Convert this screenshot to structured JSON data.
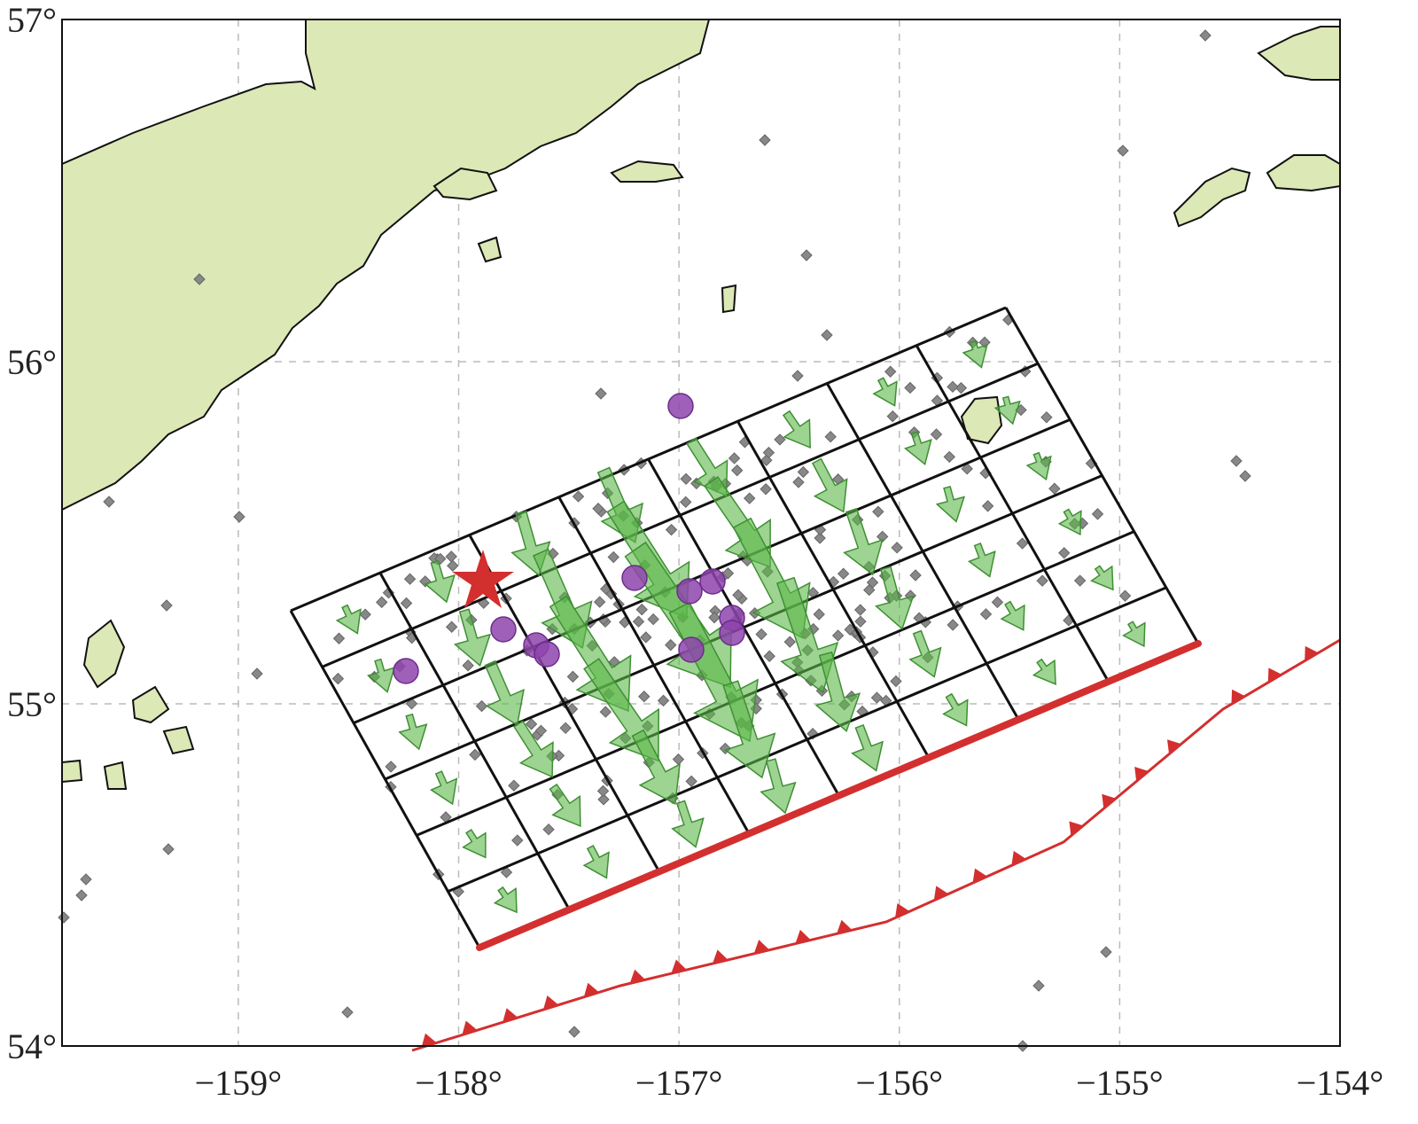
{
  "map": {
    "xlim": [
      -159.8,
      -154
    ],
    "ylim": [
      54,
      57
    ],
    "xticks": [
      {
        "value": -159,
        "label": "−159°"
      },
      {
        "value": -158,
        "label": "−158°"
      },
      {
        "value": -157,
        "label": "−157°"
      },
      {
        "value": -156,
        "label": "−156°"
      },
      {
        "value": -155,
        "label": "−155°"
      },
      {
        "value": -154,
        "label": "−154°"
      }
    ],
    "yticks": [
      {
        "value": 54,
        "label": "54°"
      },
      {
        "value": 55,
        "label": "55°"
      },
      {
        "value": 56,
        "label": "56°"
      },
      {
        "value": 57,
        "label": "57°"
      }
    ],
    "grid": true
  }
}
